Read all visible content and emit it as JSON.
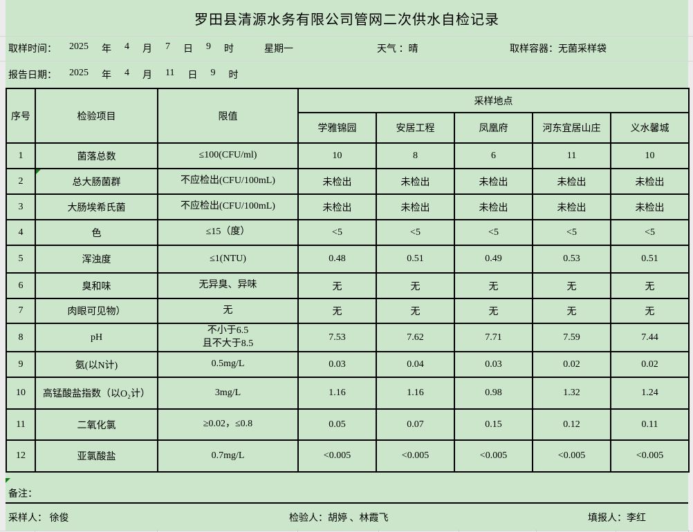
{
  "title": "罗田县清源水务有限公司管网二次供水自检记录",
  "info": {
    "sampling": {
      "label": "取样时间：",
      "date_parts": [
        "2025",
        "年",
        "4",
        "月",
        "7",
        "日",
        "9",
        "时"
      ],
      "weekday": "星期一",
      "weather_label": "天气 ：",
      "weather": "晴",
      "container_label": "取样容器：",
      "container": "无菌采样袋"
    },
    "report": {
      "label": "报告日期：",
      "date_parts": [
        "2025",
        "年",
        "4",
        "月",
        "11",
        "日",
        "9",
        "时"
      ]
    }
  },
  "table": {
    "headers": {
      "serial": "序号",
      "item": "检验项目",
      "limit": "限值",
      "site_group": "采样地点"
    },
    "sites": [
      "学雅锦园",
      "安居工程",
      "凤凰府",
      "河东宜居山庄",
      "义水馨城"
    ],
    "rows": [
      {
        "no": "1",
        "item": "菌落总数",
        "limit": "≤100(CFU/ml)",
        "values": [
          "10",
          "8",
          "6",
          "11",
          "10"
        ]
      },
      {
        "no": "2",
        "item": "总大肠菌群",
        "limit": "不应检出(CFU/100mL)",
        "values": [
          "未检出",
          "未检出",
          "未检出",
          "未检出",
          "未检出"
        ],
        "marker": true
      },
      {
        "no": "3",
        "item": "大肠埃希氏菌",
        "limit": "不应检出(CFU/100mL)",
        "values": [
          "未检出",
          "未检出",
          "未检出",
          "未检出",
          "未检出"
        ]
      },
      {
        "no": "4",
        "item": "色",
        "limit": "≤15（度）",
        "values": [
          "<5",
          "<5",
          "<5",
          "<5",
          "<5"
        ]
      },
      {
        "no": "5",
        "item": "浑浊度",
        "limit": "≤1(NTU)",
        "values": [
          "0.48",
          "0.51",
          "0.49",
          "0.53",
          "0.51"
        ]
      },
      {
        "no": "6",
        "item": "臭和味",
        "limit": "无异臭、异味",
        "values": [
          "无",
          "无",
          "无",
          "无",
          "无"
        ]
      },
      {
        "no": "7",
        "item": "肉眼可见物）",
        "limit": "无",
        "values": [
          "无",
          "无",
          "无",
          "无",
          "无"
        ]
      },
      {
        "no": "8",
        "item": "pH",
        "limit": "不小于6.5\n且不大于8.5",
        "values": [
          "7.53",
          "7.62",
          "7.71",
          "7.59",
          "7.44"
        ]
      },
      {
        "no": "9",
        "item": "氨(以N计)",
        "limit": "0.5mg/L",
        "values": [
          "0.03",
          "0.04",
          "0.03",
          "0.02",
          "0.02"
        ]
      },
      {
        "no": "10",
        "item": "高锰酸盐指数（以O₂计）",
        "limit": "3mg/L",
        "values": [
          "1.16",
          "1.16",
          "0.98",
          "1.32",
          "1.24"
        ]
      },
      {
        "no": "11",
        "item": "二氧化氯",
        "limit": "≥0.02，≤0.8",
        "values": [
          "0.05",
          "0.07",
          "0.15",
          "0.12",
          "0.11"
        ]
      },
      {
        "no": "12",
        "item": "亚氯酸盐",
        "limit": "0.7mg/L",
        "values": [
          "<0.005",
          "<0.005",
          "<0.005",
          "<0.005",
          "<0.005"
        ]
      }
    ]
  },
  "footer": {
    "remark_label": "备注：",
    "sampler_label": "采样人：",
    "sampler": "徐俊",
    "inspector_label": "检验人：",
    "inspector": "胡婷 、林霞飞",
    "reporter_label": "填报人：",
    "reporter": "李红"
  },
  "colors": {
    "sheet_green": "#cce6cb",
    "margin_gray": "#ececec",
    "border_black": "#000000",
    "marker_green": "#177c17",
    "gridline_gray": "#d6d6d6"
  }
}
